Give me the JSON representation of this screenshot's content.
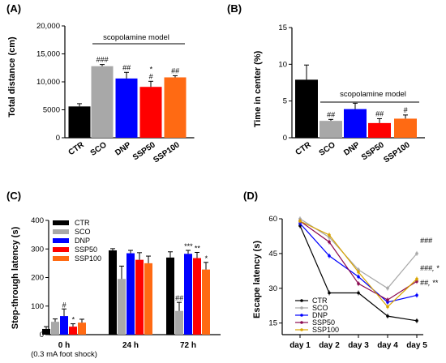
{
  "colors": {
    "CTR": "#000000",
    "SCO": "#a8a8a8",
    "DNP": "#0000ff",
    "SSP50": "#ff0000",
    "SSP100": "#ff6a13"
  },
  "chart_data": [
    {
      "panel": "(A)",
      "type": "bar",
      "ylabel": "Total distance (cm)",
      "ylim": [
        0,
        20000
      ],
      "yticks": [
        "0",
        "5000",
        "10,000",
        "15,000",
        "20,000"
      ],
      "bracket_label": "scopolamine model",
      "categories": [
        "CTR",
        "SCO",
        "DNP",
        "SSP50",
        "SSP100"
      ],
      "values": [
        5600,
        12800,
        10600,
        9100,
        10800
      ],
      "errors": [
        500,
        300,
        1100,
        1000,
        300
      ],
      "annotations": [
        "",
        "###",
        "##",
        "*\n#",
        "##"
      ]
    },
    {
      "panel": "(B)",
      "type": "bar",
      "ylabel": "Time in center (%)",
      "ylim": [
        0,
        15
      ],
      "yticks": [
        "0",
        "5",
        "10",
        "15"
      ],
      "bracket_label": "scopolamine model",
      "categories": [
        "CTR",
        "SCO",
        "DNP",
        "SSP50",
        "SSP100"
      ],
      "values": [
        7.9,
        2.3,
        3.9,
        2.0,
        2.6
      ],
      "errors": [
        2.0,
        0.2,
        0.8,
        0.6,
        0.5
      ],
      "annotations": [
        "",
        "##",
        "",
        "##",
        "#"
      ]
    },
    {
      "panel": "(C)",
      "type": "bar",
      "ylabel": "Step-through latency (s)",
      "ylim": [
        0,
        400
      ],
      "yticks": [
        "0",
        "100",
        "200",
        "300",
        "400"
      ],
      "categories": [
        "0 h",
        "24 h",
        "72 h"
      ],
      "category_note": "(0.3 mA foot shock)",
      "legend": [
        "CTR",
        "SCO",
        "DNP",
        "SSP50",
        "SSP100"
      ],
      "series": [
        {
          "name": "CTR",
          "values": [
            20,
            295,
            270
          ],
          "errors": [
            8,
            6,
            20
          ]
        },
        {
          "name": "SCO",
          "values": [
            45,
            195,
            83
          ],
          "errors": [
            10,
            45,
            30
          ]
        },
        {
          "name": "DNP",
          "values": [
            65,
            285,
            283
          ],
          "errors": [
            25,
            10,
            12
          ]
        },
        {
          "name": "SSP50",
          "values": [
            28,
            262,
            268
          ],
          "errors": [
            10,
            25,
            20
          ]
        },
        {
          "name": "SSP100",
          "values": [
            42,
            250,
            228
          ],
          "errors": [
            12,
            25,
            25
          ]
        }
      ],
      "annotations": [
        [
          "",
          "",
          "#",
          "*",
          ""
        ],
        [
          "",
          "",
          "",
          "",
          ""
        ],
        [
          "",
          "##",
          "***",
          "**",
          "*"
        ]
      ]
    },
    {
      "panel": "(D)",
      "type": "line",
      "ylabel": "Escape latency (s)",
      "ylim": [
        10,
        60
      ],
      "yticks": [
        "15",
        "30",
        "45",
        "60"
      ],
      "x": [
        "day 1",
        "day 2",
        "day 3",
        "day 4",
        "day 5"
      ],
      "series": [
        {
          "name": "CTR",
          "values": [
            57,
            28,
            28,
            18,
            16
          ]
        },
        {
          "name": "SCO",
          "values": [
            60,
            52,
            38,
            30,
            45
          ]
        },
        {
          "name": "DNP",
          "values": [
            58,
            44,
            35,
            24,
            27
          ]
        },
        {
          "name": "SSP50",
          "values": [
            59,
            50,
            32,
            25,
            33
          ]
        },
        {
          "name": "SSP100",
          "values": [
            59,
            53,
            37,
            22,
            34
          ]
        }
      ],
      "end_annotations": [
        "###",
        "###, *",
        "##, **"
      ]
    }
  ]
}
